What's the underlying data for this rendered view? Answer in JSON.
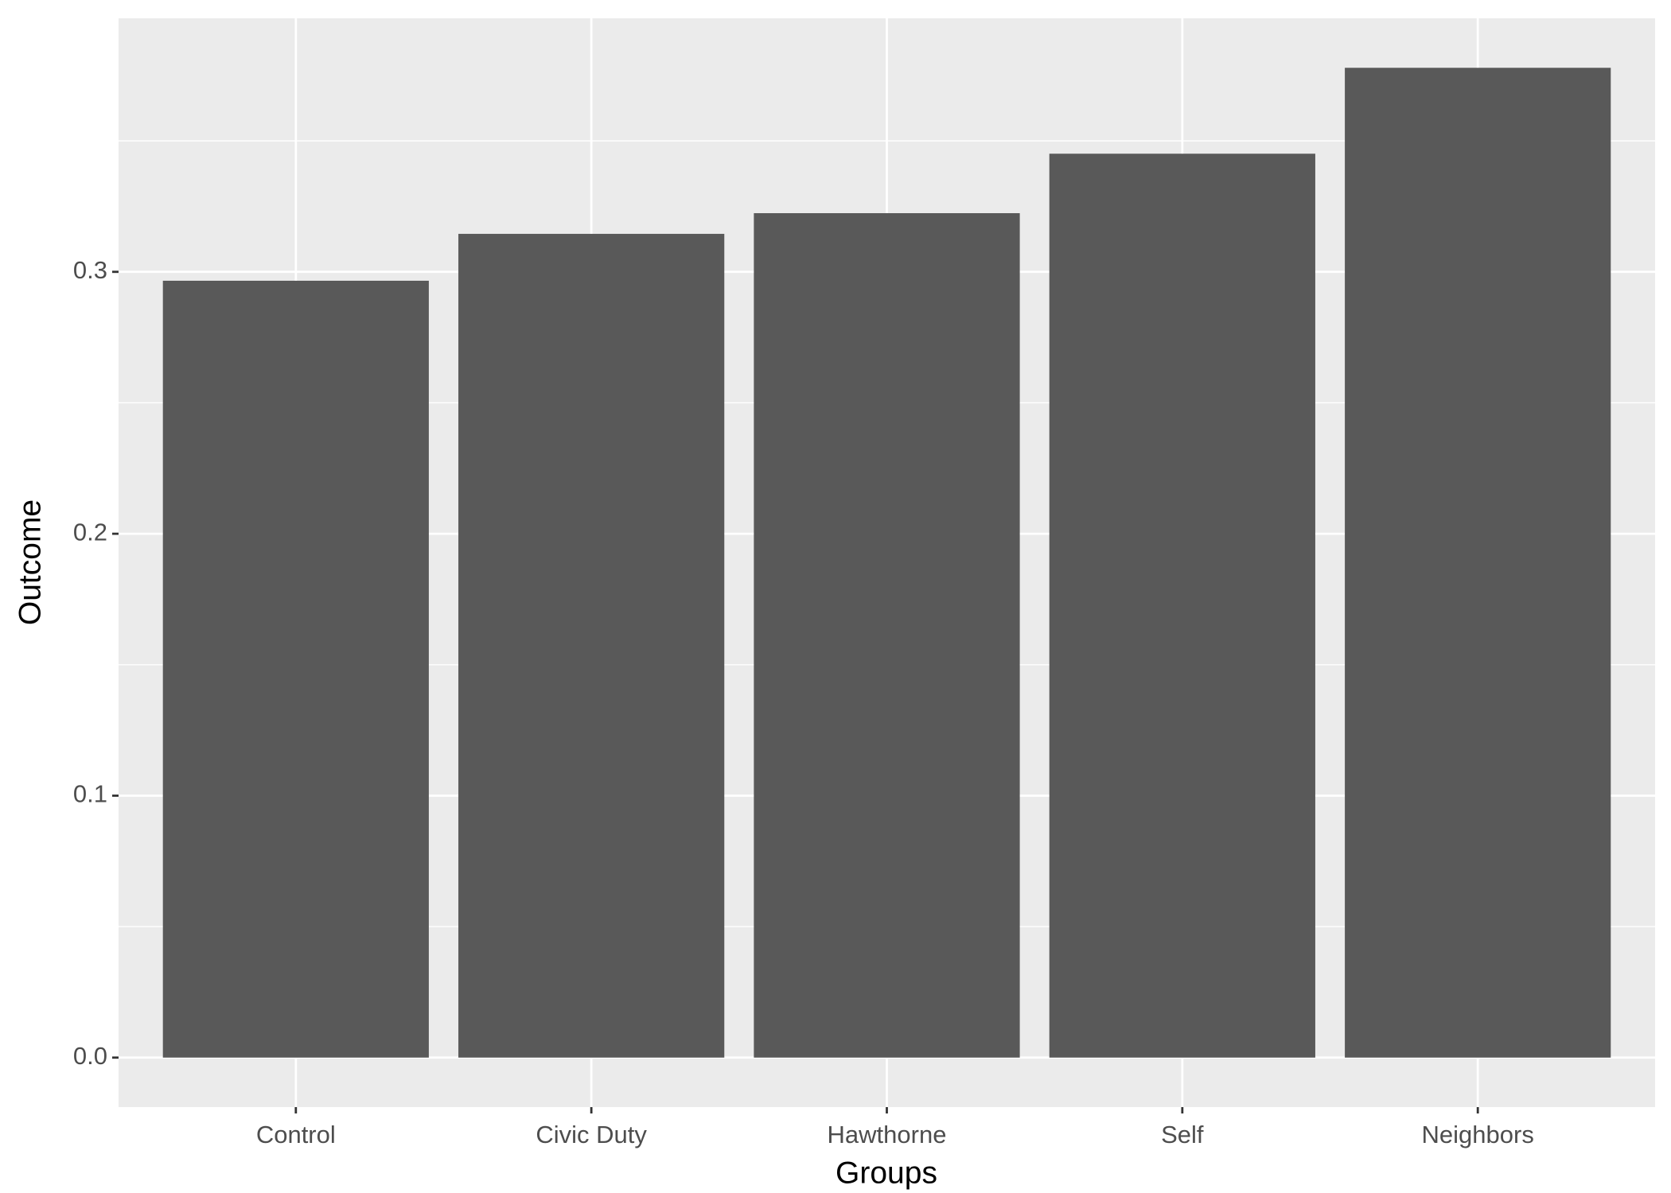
{
  "chart_data": {
    "type": "bar",
    "x_label": "Groups",
    "y_label": "Outcome",
    "categories": [
      "Control",
      "Civic Duty",
      "Hawthorne",
      "Self",
      "Neighbors"
    ],
    "values": [
      0.2966,
      0.3145,
      0.3224,
      0.3451,
      0.3779
    ],
    "color": "#595959",
    "ylim": [
      -0.0189,
      0.3968
    ],
    "yticks": [
      {
        "value": 0,
        "label": "0.0"
      },
      0.1,
      0.2,
      0.3
    ],
    "grid": true
  }
}
